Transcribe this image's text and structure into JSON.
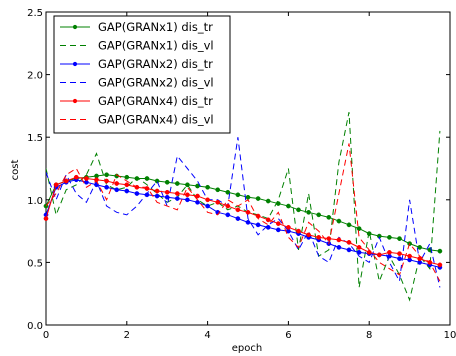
{
  "chart_data": {
    "type": "line",
    "title": "",
    "xlabel": "epoch",
    "ylabel": "cost",
    "xlim": [
      0,
      10
    ],
    "ylim": [
      0.0,
      2.5
    ],
    "xticks": [
      "0",
      "2",
      "4",
      "6",
      "8",
      "10"
    ],
    "yticks": [
      "0.0",
      "0.5",
      "1.0",
      "1.5",
      "2.0",
      "2.5"
    ],
    "grid": false,
    "legend_position": "top-left",
    "x": [
      0.0,
      0.25,
      0.5,
      0.75,
      1.0,
      1.25,
      1.5,
      1.75,
      2.0,
      2.25,
      2.5,
      2.75,
      3.0,
      3.25,
      3.5,
      3.75,
      4.0,
      4.25,
      4.5,
      4.75,
      5.0,
      5.25,
      5.5,
      5.75,
      6.0,
      6.25,
      6.5,
      6.75,
      7.0,
      7.25,
      7.5,
      7.75,
      8.0,
      8.25,
      8.5,
      8.75,
      9.0,
      9.25,
      9.5,
      9.75
    ],
    "series": [
      {
        "name": "GAP(GRANx1) dis_tr",
        "color": "#008000",
        "style": "solid-marker",
        "values": [
          0.95,
          1.12,
          1.15,
          1.17,
          1.18,
          1.19,
          1.2,
          1.19,
          1.18,
          1.17,
          1.17,
          1.15,
          1.14,
          1.13,
          1.12,
          1.11,
          1.1,
          1.08,
          1.06,
          1.04,
          1.02,
          1.01,
          0.99,
          0.97,
          0.95,
          0.92,
          0.9,
          0.88,
          0.86,
          0.83,
          0.8,
          0.77,
          0.73,
          0.71,
          0.7,
          0.69,
          0.65,
          0.62,
          0.6,
          0.59
        ]
      },
      {
        "name": "GAP(GRANx1) dis_vl",
        "color": "#008000",
        "style": "dashed",
        "values": [
          1.25,
          0.88,
          1.08,
          1.12,
          1.2,
          1.37,
          1.12,
          1.08,
          1.1,
          1.18,
          1.12,
          1.05,
          0.98,
          1.02,
          1.12,
          1.0,
          0.95,
          0.98,
          0.92,
          0.95,
          0.9,
          0.88,
          0.85,
          1.0,
          1.25,
          0.6,
          1.05,
          0.55,
          0.6,
          1.3,
          1.7,
          0.3,
          0.75,
          0.35,
          0.55,
          0.4,
          0.2,
          0.55,
          0.45,
          1.55
        ]
      },
      {
        "name": "GAP(GRANx2) dis_tr",
        "color": "#0000ff",
        "style": "solid-marker",
        "values": [
          0.88,
          1.1,
          1.14,
          1.16,
          1.14,
          1.12,
          1.1,
          1.08,
          1.07,
          1.05,
          1.04,
          1.03,
          1.02,
          1.01,
          1.0,
          0.98,
          0.95,
          0.9,
          0.88,
          0.85,
          0.82,
          0.8,
          0.78,
          0.76,
          0.75,
          0.73,
          0.7,
          0.68,
          0.65,
          0.62,
          0.6,
          0.58,
          0.57,
          0.56,
          0.55,
          0.53,
          0.52,
          0.5,
          0.48,
          0.46
        ]
      },
      {
        "name": "GAP(GRANx2) dis_vl",
        "color": "#0000ff",
        "style": "dashed",
        "values": [
          1.22,
          1.0,
          1.2,
          1.05,
          0.98,
          1.15,
          0.95,
          0.9,
          0.88,
          0.95,
          1.05,
          1.15,
          0.95,
          1.35,
          1.25,
          1.15,
          1.0,
          1.0,
          0.95,
          1.5,
          0.85,
          0.72,
          0.8,
          0.85,
          0.75,
          0.6,
          0.75,
          0.55,
          0.5,
          0.7,
          0.65,
          0.55,
          0.5,
          0.7,
          0.5,
          0.35,
          1.0,
          0.5,
          0.65,
          0.3
        ]
      },
      {
        "name": "GAP(GRANx4) dis_tr",
        "color": "#ff0000",
        "style": "solid-marker",
        "values": [
          0.85,
          1.12,
          1.15,
          1.18,
          1.17,
          1.16,
          1.15,
          1.13,
          1.12,
          1.1,
          1.09,
          1.07,
          1.06,
          1.05,
          1.04,
          1.03,
          1.0,
          0.98,
          0.95,
          0.92,
          0.9,
          0.87,
          0.84,
          0.81,
          0.78,
          0.75,
          0.72,
          0.7,
          0.69,
          0.68,
          0.66,
          0.62,
          0.58,
          0.56,
          0.58,
          0.57,
          0.55,
          0.53,
          0.5,
          0.48
        ]
      },
      {
        "name": "GAP(GRANx4) dis_vl",
        "color": "#ff0000",
        "style": "dashed",
        "values": [
          0.95,
          1.05,
          1.2,
          1.25,
          1.1,
          1.15,
          1.0,
          1.2,
          1.15,
          1.1,
          1.1,
          0.98,
          0.95,
          0.92,
          1.1,
          1.0,
          0.9,
          0.88,
          1.0,
          0.95,
          1.0,
          0.85,
          0.8,
          0.9,
          0.7,
          0.62,
          0.82,
          0.75,
          0.65,
          1.05,
          1.45,
          0.7,
          0.6,
          0.5,
          0.45,
          0.4,
          0.65,
          0.55,
          0.5,
          0.35
        ]
      }
    ]
  }
}
